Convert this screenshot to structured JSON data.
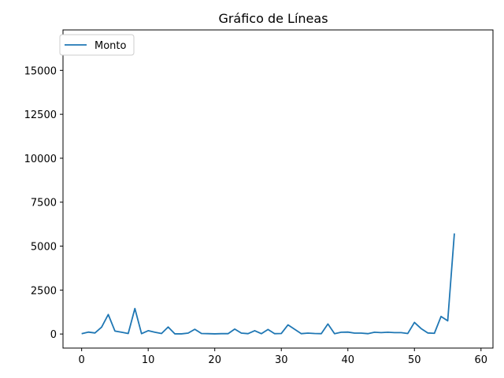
{
  "chart_data": {
    "type": "line",
    "title": "Gráfico de Líneas",
    "xlabel": "",
    "ylabel": "",
    "xlim": [
      -2.8,
      61.8
    ],
    "ylim": [
      -800,
      17300
    ],
    "xticks": [
      0,
      10,
      20,
      30,
      40,
      50,
      60
    ],
    "xtick_labels": [
      "0",
      "10",
      "20",
      "30",
      "40",
      "50",
      "60"
    ],
    "yticks": [
      0,
      2500,
      5000,
      7500,
      10000,
      12500,
      15000
    ],
    "ytick_labels": [
      "0",
      "2500",
      "5000",
      "7500",
      "10000",
      "12500",
      "15000"
    ],
    "grid": false,
    "legend_position": "upper-left",
    "series": [
      {
        "name": "Monto",
        "color": "#1f77b4",
        "x": [
          0,
          1,
          2,
          3,
          4,
          5,
          6,
          7,
          8,
          9,
          10,
          11,
          12,
          13,
          14,
          15,
          16,
          17,
          18,
          19,
          20,
          21,
          22,
          23,
          24,
          25,
          26,
          27,
          28,
          29,
          30,
          31,
          32,
          33,
          34,
          35,
          36,
          37,
          38,
          39,
          40,
          41,
          42,
          43,
          44,
          45,
          46,
          47,
          48,
          49,
          50,
          51,
          52,
          53,
          54,
          55,
          56
        ],
        "values": [
          20,
          110,
          60,
          390,
          1110,
          170,
          100,
          30,
          1450,
          20,
          190,
          100,
          30,
          400,
          10,
          10,
          50,
          270,
          30,
          20,
          10,
          20,
          20,
          280,
          50,
          20,
          190,
          20,
          260,
          20,
          30,
          520,
          270,
          20,
          50,
          30,
          20,
          570,
          20,
          100,
          110,
          50,
          50,
          20,
          100,
          80,
          100,
          80,
          80,
          30,
          660,
          310,
          60,
          40,
          1000,
          750,
          5720
        ]
      }
    ]
  }
}
